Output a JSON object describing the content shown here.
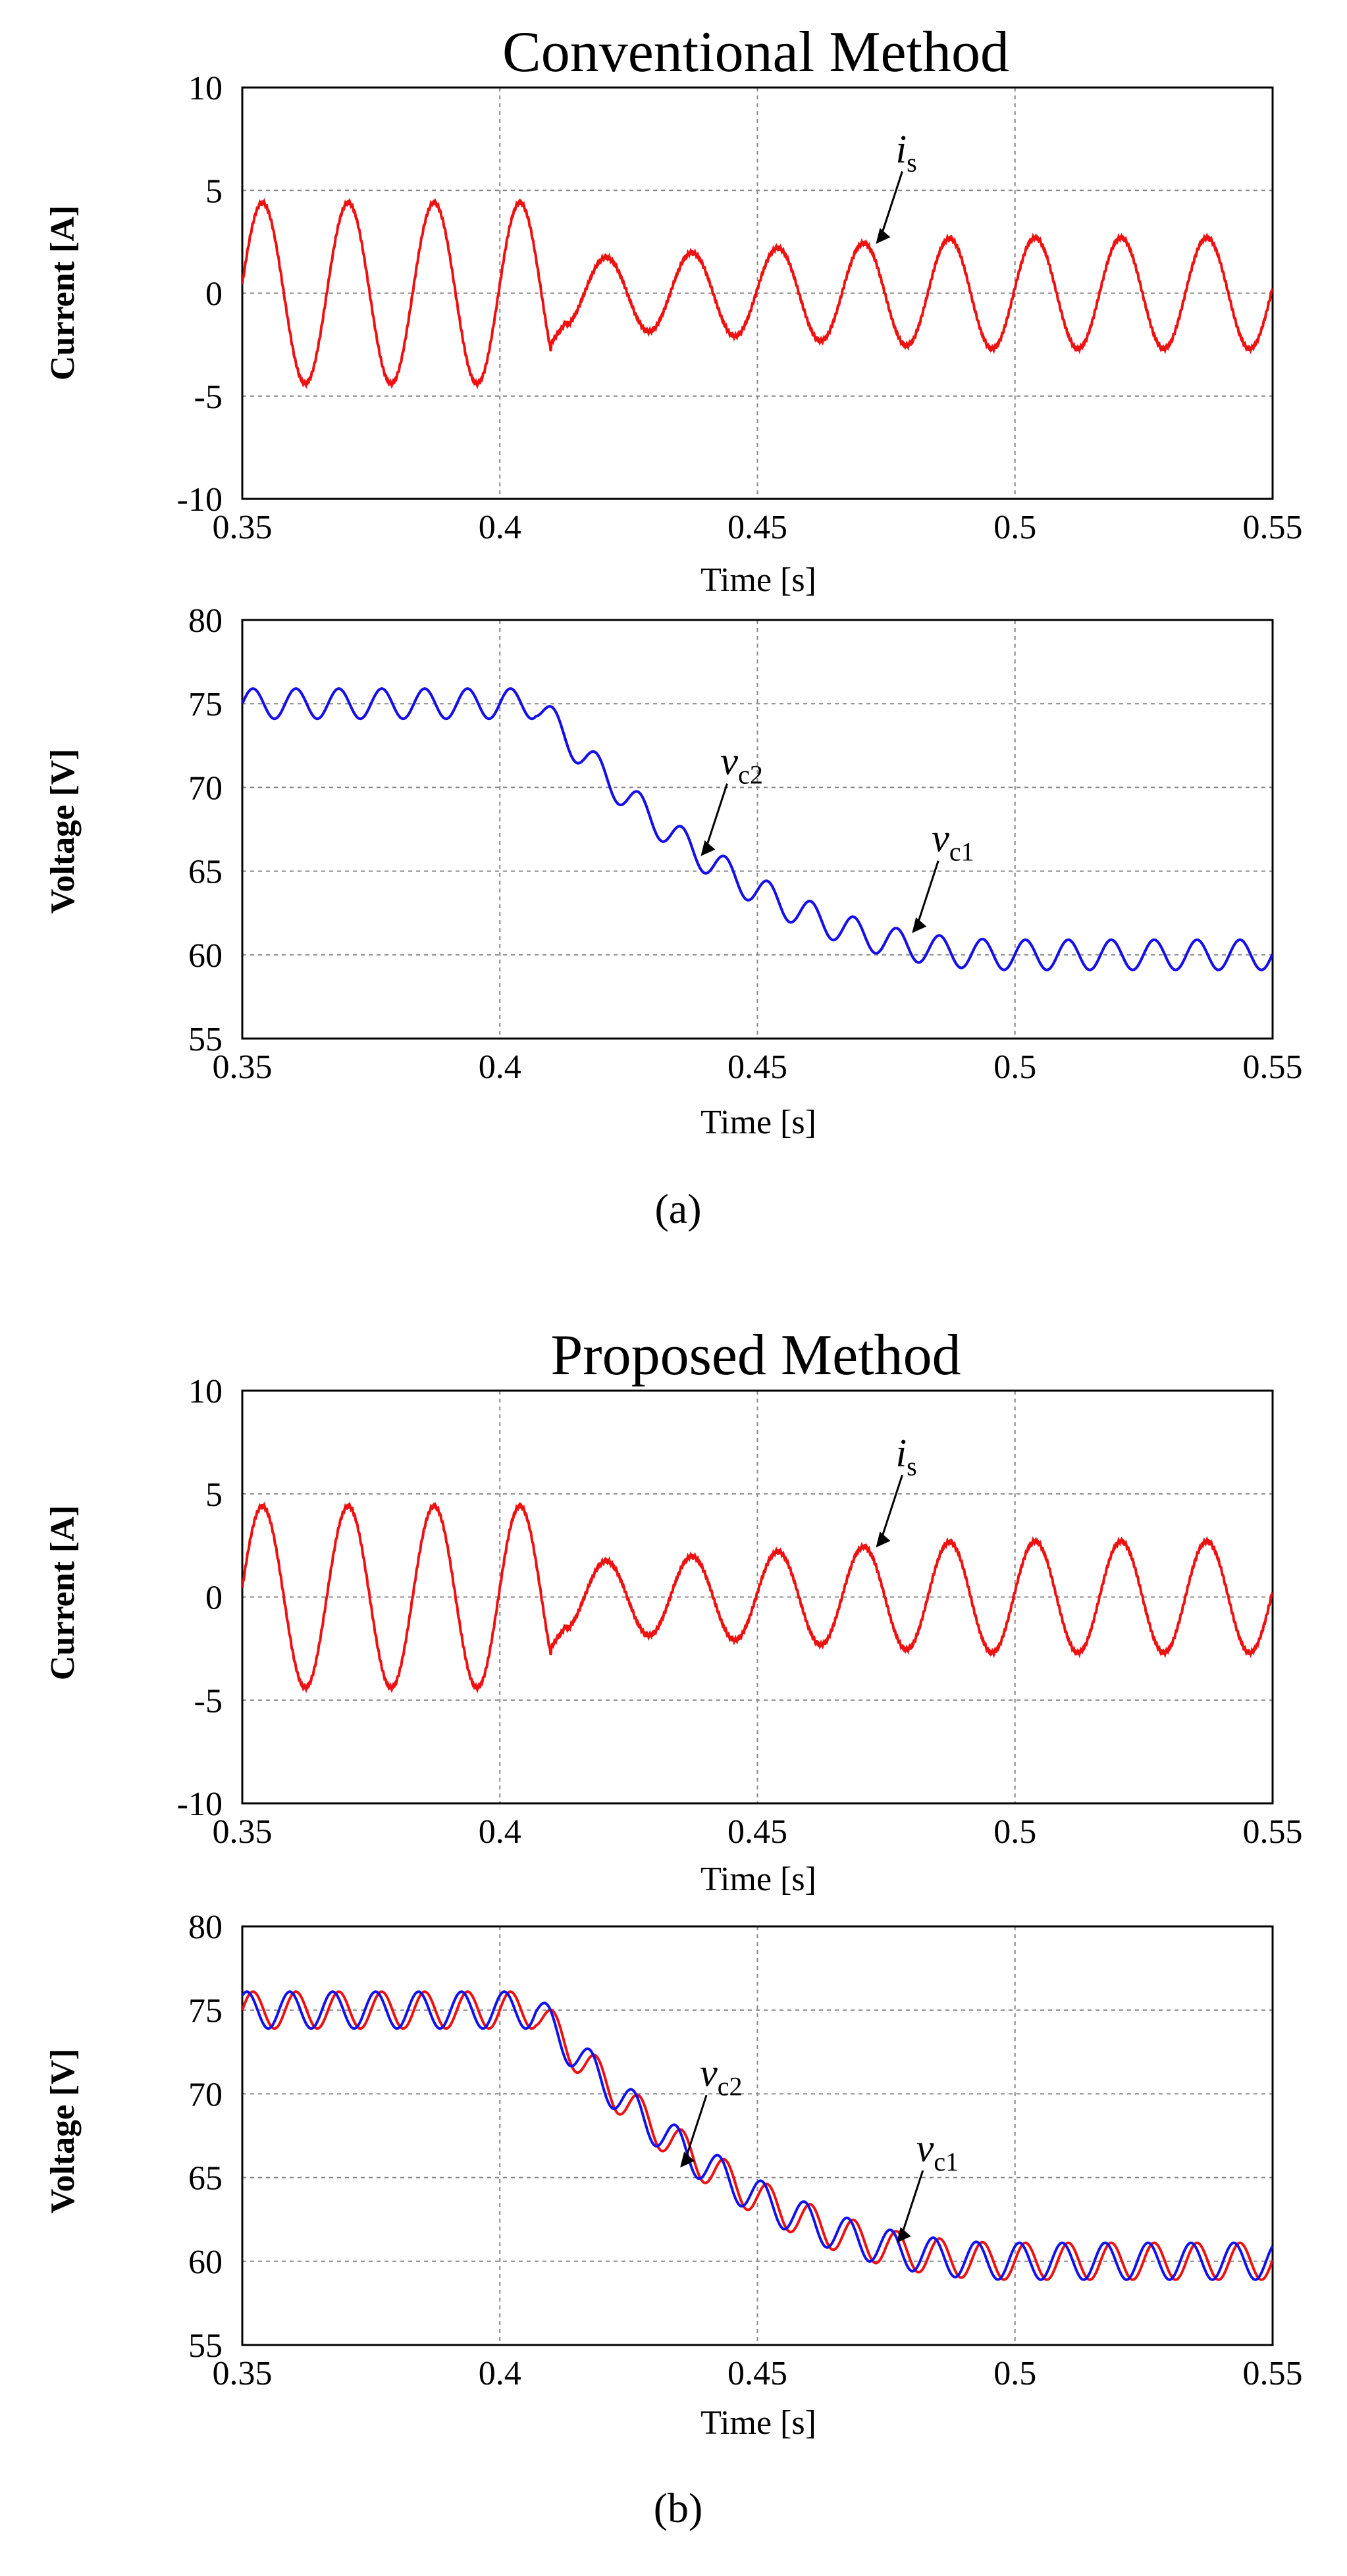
{
  "chart_data": [
    {
      "id": "a-current",
      "type": "line",
      "title": "Conventional Method",
      "xlabel": "Time [s]",
      "ylabel": "Current [A]",
      "xlim": [
        0.35,
        0.55
      ],
      "ylim": [
        -10,
        10
      ],
      "x_ticks": [
        "0.35",
        "0.4",
        "0.45",
        "0.5",
        "0.55"
      ],
      "y_ticks": [
        "10",
        "5",
        "0",
        "-5",
        "-10"
      ],
      "grid": true,
      "series": [
        {
          "name": "is",
          "color": "#ee1111",
          "waveform": "sine",
          "frequency_hz": 60,
          "points": [
            {
              "x": 0.35,
              "y": 0.4
            },
            {
              "x": 0.3542,
              "y": 4.4
            },
            {
              "x": 0.3625,
              "y": -4.4
            },
            {
              "x": 0.3708,
              "y": 4.4
            },
            {
              "x": 0.3792,
              "y": -4.4
            },
            {
              "x": 0.3875,
              "y": 4.4
            },
            {
              "x": 0.3958,
              "y": -4.4
            },
            {
              "x": 0.4042,
              "y": 4.4
            },
            {
              "x": 0.41,
              "y": -2.4
            },
            {
              "x": 0.4125,
              "y": -1.3
            },
            {
              "x": 0.4208,
              "y": 1.7
            },
            {
              "x": 0.4292,
              "y": -1.8
            },
            {
              "x": 0.4375,
              "y": 2.1
            },
            {
              "x": 0.4458,
              "y": -2.2
            },
            {
              "x": 0.4542,
              "y": 2.4
            },
            {
              "x": 0.4625,
              "y": -2.5
            },
            {
              "x": 0.4708,
              "y": 2.6
            },
            {
              "x": 0.4792,
              "y": -2.6
            },
            {
              "x": 0.4875,
              "y": 2.7
            },
            {
              "x": 0.4958,
              "y": -2.7
            },
            {
              "x": 0.5042,
              "y": 2.7
            },
            {
              "x": 0.5125,
              "y": -2.7
            },
            {
              "x": 0.5208,
              "y": 2.7
            },
            {
              "x": 0.5292,
              "y": -2.7
            },
            {
              "x": 0.5375,
              "y": 2.7
            },
            {
              "x": 0.5458,
              "y": -2.7
            },
            {
              "x": 0.55,
              "y": 0
            }
          ]
        }
      ],
      "annotations": [
        {
          "symbol": "i",
          "subscript": "s",
          "x": 0.473,
          "y": 2.4
        }
      ]
    },
    {
      "id": "a-voltage",
      "type": "line",
      "xlabel": "Time [s]",
      "ylabel": "Voltage [V]",
      "xlim": [
        0.35,
        0.55
      ],
      "ylim": [
        55,
        80
      ],
      "x_ticks": [
        "0.35",
        "0.4",
        "0.45",
        "0.5",
        "0.55"
      ],
      "y_ticks": [
        "80",
        "75",
        "70",
        "65",
        "60",
        "55"
      ],
      "grid": true,
      "series": [
        {
          "name": "vc1",
          "color": "#ee1111",
          "step_ranges": [
            [
              0.35,
              75
            ],
            [
              0.407,
              75
            ],
            [
              0.48,
              61
            ],
            [
              0.55,
              60
            ]
          ],
          "ripple_amplitude": 0.9,
          "ripple_period_s": 0.00833
        },
        {
          "name": "vc2",
          "color": "#1111ee",
          "step_ranges": [
            [
              0.35,
              75
            ],
            [
              0.407,
              75
            ],
            [
              0.48,
              61
            ],
            [
              0.55,
              60
            ]
          ],
          "ripple_amplitude": 0.9,
          "ripple_period_s": 0.00833
        }
      ],
      "annotations": [
        {
          "symbol": "v",
          "subscript": "c2",
          "x": 0.439,
          "y": 65.9
        },
        {
          "symbol": "v",
          "subscript": "c1",
          "x": 0.48,
          "y": 61.3
        }
      ]
    },
    {
      "id": "b-current",
      "type": "line",
      "title": "Proposed Method",
      "xlabel": "Time [s]",
      "ylabel": "Current [A]",
      "xlim": [
        0.35,
        0.55
      ],
      "ylim": [
        -10,
        10
      ],
      "x_ticks": [
        "0.35",
        "0.4",
        "0.45",
        "0.5",
        "0.55"
      ],
      "y_ticks": [
        "10",
        "5",
        "0",
        "-5",
        "-10"
      ],
      "grid": true,
      "series": [
        {
          "name": "is",
          "color": "#ee1111",
          "waveform": "sine",
          "frequency_hz": 60,
          "points": [
            {
              "x": 0.35,
              "y": 0.4
            },
            {
              "x": 0.3542,
              "y": 4.4
            },
            {
              "x": 0.3625,
              "y": -4.4
            },
            {
              "x": 0.3708,
              "y": 4.4
            },
            {
              "x": 0.3792,
              "y": -4.4
            },
            {
              "x": 0.3875,
              "y": 4.4
            },
            {
              "x": 0.3958,
              "y": -4.4
            },
            {
              "x": 0.4042,
              "y": 4.4
            },
            {
              "x": 0.41,
              "y": -2.4
            },
            {
              "x": 0.4125,
              "y": -1.3
            },
            {
              "x": 0.4208,
              "y": 1.7
            },
            {
              "x": 0.4292,
              "y": -1.8
            },
            {
              "x": 0.4375,
              "y": 2.1
            },
            {
              "x": 0.4458,
              "y": -2.2
            },
            {
              "x": 0.4542,
              "y": 2.4
            },
            {
              "x": 0.4625,
              "y": -2.5
            },
            {
              "x": 0.4708,
              "y": 2.6
            },
            {
              "x": 0.4792,
              "y": -2.6
            },
            {
              "x": 0.4875,
              "y": 2.7
            },
            {
              "x": 0.4958,
              "y": -2.7
            },
            {
              "x": 0.5042,
              "y": 2.7
            },
            {
              "x": 0.5125,
              "y": -2.7
            },
            {
              "x": 0.5208,
              "y": 2.7
            },
            {
              "x": 0.5292,
              "y": -2.7
            },
            {
              "x": 0.5375,
              "y": 2.7
            },
            {
              "x": 0.5458,
              "y": -2.7
            },
            {
              "x": 0.55,
              "y": 0
            }
          ]
        }
      ],
      "annotations": [
        {
          "symbol": "i",
          "subscript": "s",
          "x": 0.473,
          "y": 2.4
        }
      ]
    },
    {
      "id": "b-voltage",
      "type": "line",
      "xlabel": "Time [s]",
      "ylabel": "Voltage [V]",
      "xlim": [
        0.35,
        0.55
      ],
      "ylim": [
        55,
        80
      ],
      "x_ticks": [
        "0.35",
        "0.4",
        "0.45",
        "0.5",
        "0.55"
      ],
      "y_ticks": [
        "80",
        "75",
        "70",
        "65",
        "60",
        "55"
      ],
      "grid": true,
      "series": [
        {
          "name": "vc1",
          "color": "#ee1111",
          "step_ranges": [
            [
              0.35,
              75
            ],
            [
              0.407,
              75
            ],
            [
              0.48,
              61
            ],
            [
              0.55,
              60
            ]
          ],
          "ripple_amplitude": 1.1,
          "ripple_period_s": 0.00833
        },
        {
          "name": "vc2",
          "color": "#1111ee",
          "step_ranges": [
            [
              0.35,
              75
            ],
            [
              0.407,
              75
            ],
            [
              0.48,
              61
            ],
            [
              0.55,
              60
            ]
          ],
          "ripple_amplitude": 1.1,
          "ripple_period_s": 0.00833
        }
      ],
      "annotations": [
        {
          "symbol": "v",
          "subscript": "c2",
          "x": 0.435,
          "y": 65.6
        },
        {
          "symbol": "v",
          "subscript": "c1",
          "x": 0.477,
          "y": 61.1
        }
      ]
    }
  ],
  "captions": {
    "a": "(a)",
    "b": "(b)"
  }
}
